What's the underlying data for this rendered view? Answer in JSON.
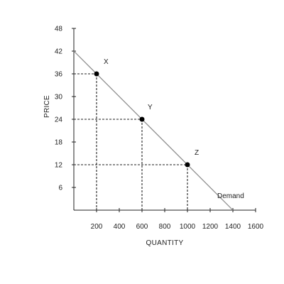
{
  "chart_data": {
    "type": "line",
    "xlabel": "QUANTITY",
    "ylabel": "PRICE",
    "xlim": [
      0,
      1600
    ],
    "ylim": [
      0,
      48
    ],
    "x_ticks": [
      200,
      400,
      600,
      800,
      1000,
      1200,
      1400,
      1600
    ],
    "y_ticks": [
      6,
      12,
      18,
      24,
      30,
      36,
      42,
      48
    ],
    "grid": false,
    "series": [
      {
        "name": "Demand",
        "color": "#888888",
        "x": [
          0,
          1400
        ],
        "y": [
          42,
          0
        ]
      }
    ],
    "points": [
      {
        "label": "X",
        "x": 200,
        "y": 36
      },
      {
        "label": "Y",
        "x": 600,
        "y": 24
      },
      {
        "label": "Z",
        "x": 1000,
        "y": 12
      }
    ],
    "guide_lines": "dashed"
  }
}
